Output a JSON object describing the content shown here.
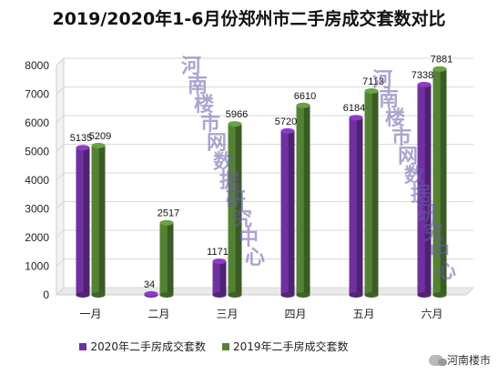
{
  "chart_data": {
    "type": "bar",
    "title": "2019/2020年1-6月份郑州市二手房成交套数对比",
    "categories": [
      "一月",
      "二月",
      "三月",
      "四月",
      "五月",
      "六月"
    ],
    "series": [
      {
        "name": "2020年二手房成交套数",
        "color": "#7030a0",
        "values": [
          5135,
          34,
          1171,
          5720,
          6184,
          7338
        ]
      },
      {
        "name": "2019年二手房成交套数",
        "color": "#548235",
        "values": [
          5209,
          2517,
          5966,
          6610,
          7113,
          7881
        ]
      }
    ],
    "ylim": [
      0,
      8000
    ],
    "yticks": [
      0,
      1000,
      2000,
      3000,
      4000,
      5000,
      6000,
      7000,
      8000
    ],
    "grid": true,
    "legend_position": "bottom",
    "watermark": "河南楼市网数据研究中心"
  },
  "source": {
    "label": "河南楼市",
    "icon": "wechat-icon"
  }
}
